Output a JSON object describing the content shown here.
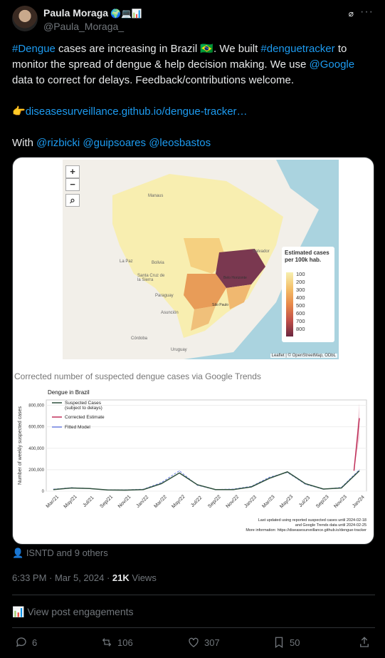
{
  "author": {
    "name": "Paula Moraga",
    "badges": "🌍💻📊",
    "handle": "@Paula_Moraga_"
  },
  "post": {
    "line1_tag": "#Dengue",
    "line1_text": " cases are increasing in Brazil 🇧🇷. We built ",
    "line1_tag2": "#denguetracker",
    "line1_text2": " to monitor the spread of dengue & help decision making. We use ",
    "line1_mention": "@Google",
    "line1_text3": " data to correct for delays. Feedback/contributions welcome.",
    "link_prefix": "👉",
    "link_text": "diseasesurveillance.github.io/dengue-tracker…",
    "with_label": "With ",
    "mentions": [
      "@rizbicki",
      "@guipsoares",
      "@leosbastos"
    ]
  },
  "map": {
    "zoom_in": "+",
    "zoom_out": "−",
    "legend_title": "Estimated cases per 100k hab.",
    "legend_ticks": [
      "100",
      "200",
      "300",
      "400",
      "500",
      "600",
      "700",
      "800"
    ],
    "attribution": "Leaflet | © OpenStreetMap, ODbL",
    "place_labels": [
      "Manaus",
      "Bolivia",
      "Santa Cruz de la Sierra",
      "Paraguay",
      "Asunción",
      "Córdoba",
      "Uruguay",
      "Salvador",
      "Belo Horizonte",
      "São Paulo",
      "La Paz"
    ]
  },
  "chart_data": {
    "type": "line",
    "title": "Corrected number of suspected dengue cases via Google Trends",
    "subtitle": "Dengue in Brazil",
    "ylabel": "Number of weekly suspected cases",
    "ylim": [
      0,
      850000
    ],
    "yticks": [
      "0",
      "200,000",
      "400,000",
      "600,000",
      "800,000"
    ],
    "x": [
      "Mar/21",
      "May/21",
      "Jul/21",
      "Sep/21",
      "Nov/21",
      "Jan/22",
      "Mar/22",
      "May/22",
      "Jul/22",
      "Sep/22",
      "Nov/22",
      "Jan/23",
      "Mar/23",
      "May/23",
      "Jul/23",
      "Sep/23",
      "Nov/23",
      "Jan/24"
    ],
    "series": [
      {
        "name": "Suspected Cases (subject to delays)",
        "color": "#2e4f3c",
        "values": [
          15000,
          30000,
          25000,
          12000,
          10000,
          15000,
          70000,
          170000,
          60000,
          15000,
          15000,
          40000,
          120000,
          180000,
          70000,
          20000,
          30000,
          190000
        ]
      },
      {
        "name": "Corrected Estimate",
        "color": "#c0305a",
        "values": [
          null,
          null,
          null,
          null,
          null,
          null,
          null,
          null,
          null,
          null,
          null,
          null,
          null,
          null,
          null,
          null,
          null,
          680000
        ]
      },
      {
        "name": "Fitted Model",
        "color": "#6c7fe0",
        "values": [
          18000,
          32000,
          25000,
          12000,
          12000,
          18000,
          80000,
          190000,
          55000,
          15000,
          20000,
          45000,
          130000,
          175000,
          65000,
          18000,
          35000,
          200000
        ]
      }
    ],
    "footnote": "Last updated using reported suspected cases until 2024-02-18\nand Google Trends data until 2024-02-25\nMore information: https://diseasesurveillance.github.io/dengue-tracker"
  },
  "liked_by": "ISNTD and 9 others",
  "timestamp": "6:33 PM · Mar 5, 2024 · ",
  "views_count": "21K",
  "views_label": " Views",
  "engagements_label": "View post engagements",
  "stats": {
    "replies": "6",
    "reposts": "106",
    "likes": "307",
    "bookmarks": "50"
  }
}
